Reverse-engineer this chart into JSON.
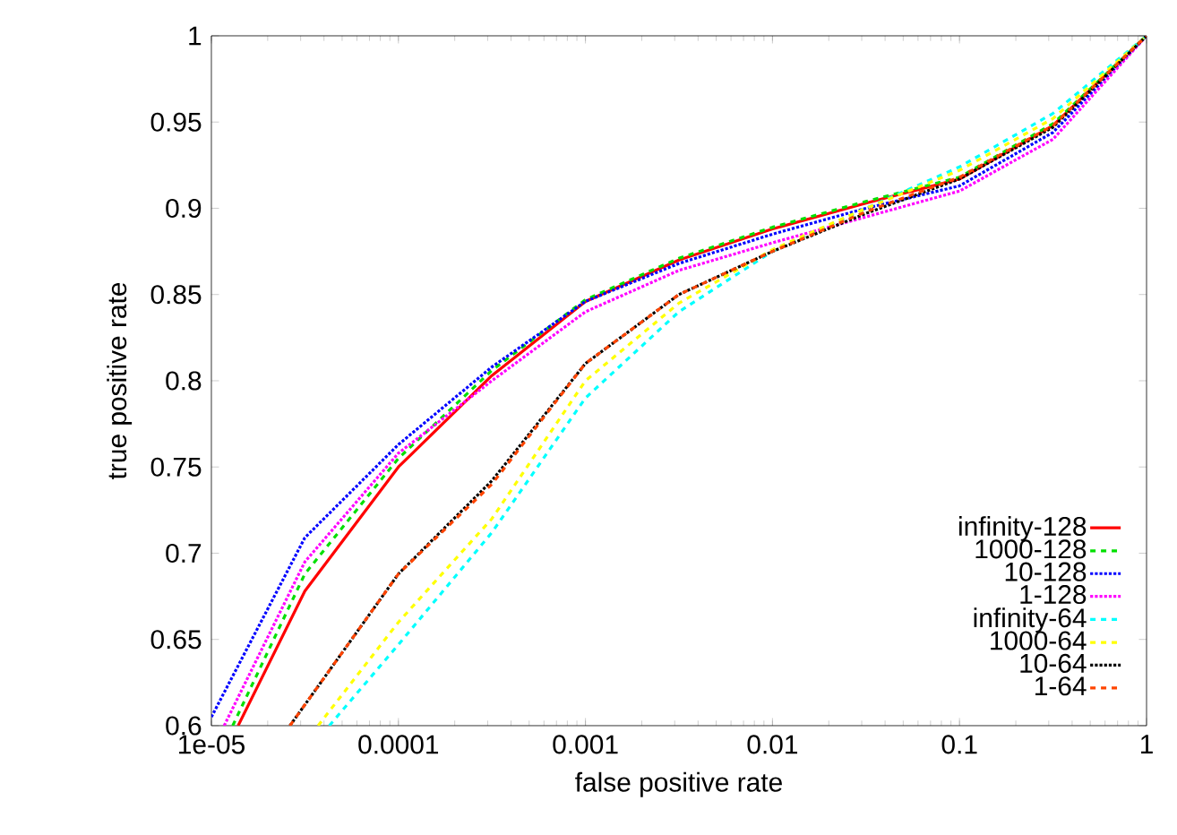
{
  "chart_data": {
    "type": "line",
    "xlabel": "false positive rate",
    "ylabel": "true positive rate",
    "log": "x",
    "xlim": [
      1e-05,
      1
    ],
    "ylim": [
      0.6,
      1
    ],
    "xticks": [
      {
        "value": 1e-05,
        "label": "1e-05"
      },
      0.0001,
      0.001,
      0.01,
      0.1,
      1
    ],
    "yticks": [
      0.6,
      0.65,
      0.7,
      0.75,
      0.8,
      0.85,
      0.9,
      0.95,
      1
    ],
    "grid": false,
    "legend": "bottom right",
    "series": [
      {
        "name": "infinity-128",
        "color": "#ff0000",
        "line_style": "solid",
        "x": [
          1.39e-05,
          3.16e-05,
          0.0001,
          0.000316,
          0.001,
          0.00316,
          0.01,
          0.0316,
          0.1,
          0.316,
          1
        ],
        "values": [
          0.6,
          0.678,
          0.75,
          0.803,
          0.846,
          0.87,
          0.888,
          0.903,
          0.917,
          0.948,
          1
        ]
      },
      {
        "name": "1000-128",
        "color": "#00e000",
        "line_style": "dashed",
        "x": [
          1.3e-05,
          3.16e-05,
          0.0001,
          0.000316,
          0.001,
          0.00316,
          0.01,
          0.0316,
          0.1,
          0.316,
          1
        ],
        "values": [
          0.6,
          0.688,
          0.755,
          0.806,
          0.847,
          0.871,
          0.889,
          0.904,
          0.918,
          0.949,
          1
        ]
      },
      {
        "name": "10-128",
        "color": "#0000ff",
        "line_style": "dotted",
        "x": [
          1e-05,
          3.16e-05,
          0.0001,
          0.000316,
          0.001,
          0.00316,
          0.01,
          0.0316,
          0.1,
          0.316,
          1
        ],
        "values": [
          0.605,
          0.709,
          0.763,
          0.808,
          0.846,
          0.868,
          0.885,
          0.9,
          0.913,
          0.944,
          1
        ]
      },
      {
        "name": "1-128",
        "color": "#ff00ff",
        "line_style": "dotted",
        "x": [
          1.17e-05,
          3.16e-05,
          0.0001,
          0.000316,
          0.001,
          0.00316,
          0.01,
          0.0316,
          0.1,
          0.316,
          1
        ],
        "values": [
          0.6,
          0.695,
          0.758,
          0.8,
          0.84,
          0.864,
          0.88,
          0.895,
          0.91,
          0.94,
          1
        ]
      },
      {
        "name": "infinity-64",
        "color": "#00ffff",
        "line_style": "dashed",
        "x": [
          4.27e-05,
          0.0001,
          0.000316,
          0.001,
          0.00316,
          0.01,
          0.0316,
          0.1,
          0.316,
          1
        ],
        "values": [
          0.6,
          0.647,
          0.712,
          0.79,
          0.84,
          0.875,
          0.9,
          0.924,
          0.955,
          1
        ]
      },
      {
        "name": "1000-64",
        "color": "#ffff00",
        "line_style": "dashed",
        "x": [
          3.72e-05,
          0.0001,
          0.000316,
          0.001,
          0.00316,
          0.01,
          0.0316,
          0.1,
          0.316,
          1
        ],
        "values": [
          0.6,
          0.66,
          0.72,
          0.8,
          0.845,
          0.876,
          0.9,
          0.922,
          0.952,
          1
        ]
      },
      {
        "name": "10-64",
        "color": "#000000",
        "line_style": "dotted",
        "x": [
          2.63e-05,
          0.0001,
          0.000316,
          0.001,
          0.00316,
          0.01,
          0.0316,
          0.1,
          0.316,
          1
        ],
        "values": [
          0.6,
          0.688,
          0.742,
          0.81,
          0.85,
          0.875,
          0.897,
          0.917,
          0.947,
          1
        ]
      },
      {
        "name": "1-64",
        "color": "#ff4500",
        "line_style": "dashed",
        "x": [
          2.63e-05,
          0.0001,
          0.000316,
          0.001,
          0.00316,
          0.01,
          0.0316,
          0.1,
          0.316,
          1
        ],
        "values": [
          0.6,
          0.688,
          0.74,
          0.81,
          0.85,
          0.875,
          0.898,
          0.918,
          0.948,
          1
        ]
      }
    ]
  }
}
